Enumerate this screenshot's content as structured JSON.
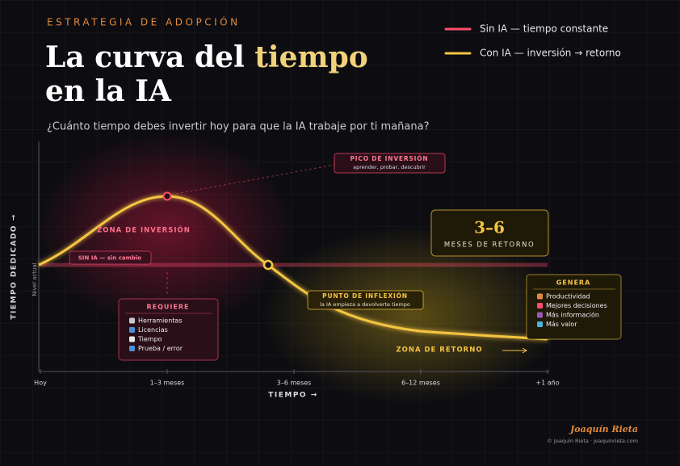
{
  "header": {
    "kicker": "ESTRATEGIA DE ADOPCIÓN",
    "title_start": "La curva del ",
    "title_highlight": "tiempo",
    "title_line2": "en la IA",
    "subtitle": "¿Cuánto tiempo debes invertir hoy para que la IA trabaje por ti mañana?"
  },
  "legend": [
    {
      "label": "Sin IA — tiempo constante",
      "color": "#ff4d6d"
    },
    {
      "label": "Con IA — inversión → retorno",
      "color": "#f5c542"
    }
  ],
  "axes": {
    "y_label": "TIEMPO DEDICADO →",
    "baseline_label": "Nivel actual",
    "x_label": "TIEMPO →",
    "x_ticks": [
      "Hoy",
      "1–3 meses",
      "3–6 meses",
      "6–12 meses",
      "+1 año"
    ]
  },
  "annotations": {
    "peak": {
      "title": "PICO DE INVERSIÓN",
      "subtitle": "aprender, probar, descubrir"
    },
    "investment_zone": "ZONA DE INVERSIÓN",
    "no_ai": "SIN IA — sin cambio",
    "requires": {
      "title": "REQUIERE",
      "items": [
        "Herramientas",
        "Licencias",
        "Tiempo",
        "Prueba / error"
      ]
    },
    "inflection": {
      "title": "PUNTO DE INFLEXIÓN",
      "subtitle": "la IA empieza a devolverte tiempo"
    },
    "return_box": {
      "value": "3–6",
      "label": "MESES DE RETORNO"
    },
    "return_zone": "ZONA DE RETORNO",
    "generates": {
      "title": "GENERA",
      "items": [
        "Productividad",
        "Mejores decisiones",
        "Más información",
        "Más valor"
      ]
    }
  },
  "footer": {
    "author": "Joaquín Rieta",
    "credit": "© Joaquín Rieta · joaquinrieta.com"
  }
}
